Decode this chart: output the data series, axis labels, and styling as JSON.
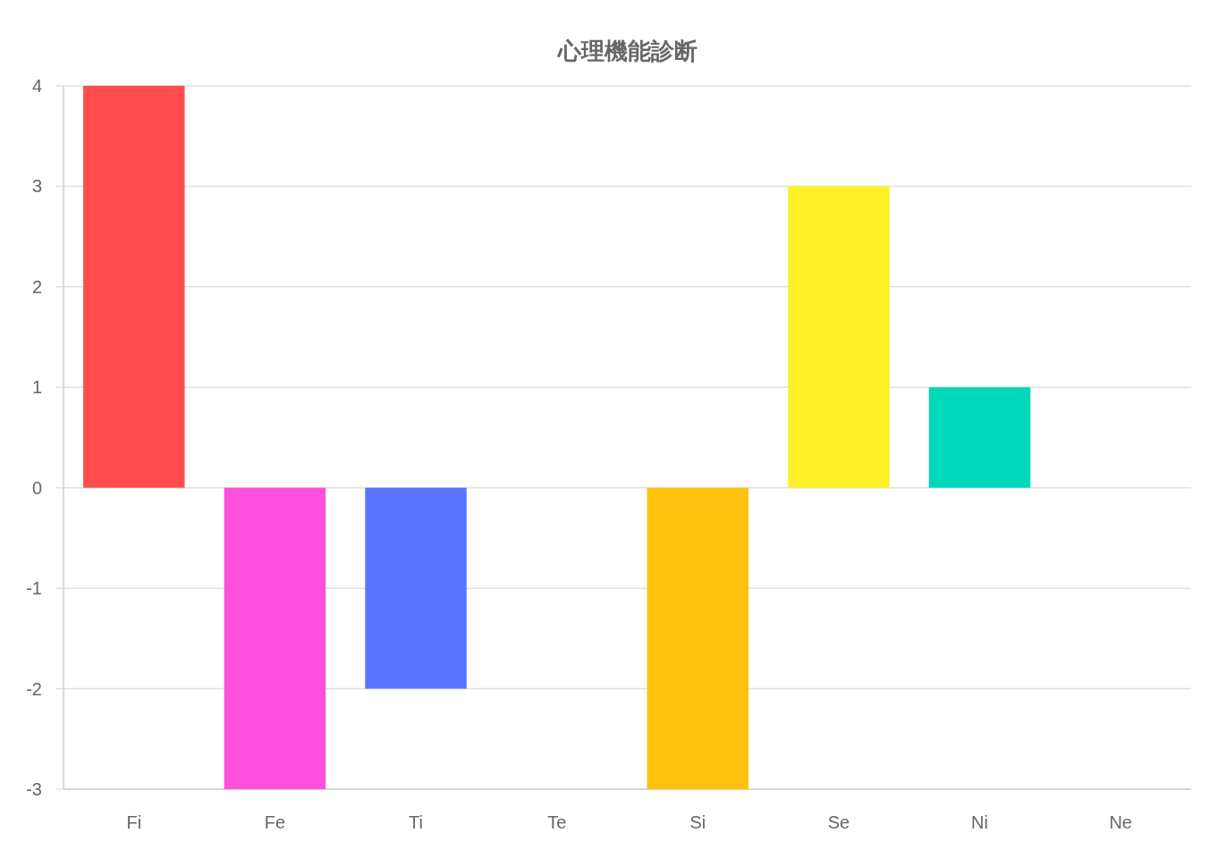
{
  "chart_data": {
    "type": "bar",
    "title": "心理機能診断",
    "categories": [
      "Fi",
      "Fe",
      "Ti",
      "Te",
      "Si",
      "Se",
      "Ni",
      "Ne"
    ],
    "values": [
      4,
      -3,
      -2,
      0,
      -3,
      3,
      1,
      0
    ],
    "colors": [
      "#ff4d4d",
      "#ff4fdd",
      "#5b74ff",
      null,
      "#ffc20f",
      "#fff126",
      "#00d9b9",
      null
    ],
    "ylim": [
      -3,
      4
    ],
    "yticks": [
      -3,
      -2,
      -1,
      0,
      1,
      2,
      3,
      4
    ],
    "grid": "y"
  }
}
